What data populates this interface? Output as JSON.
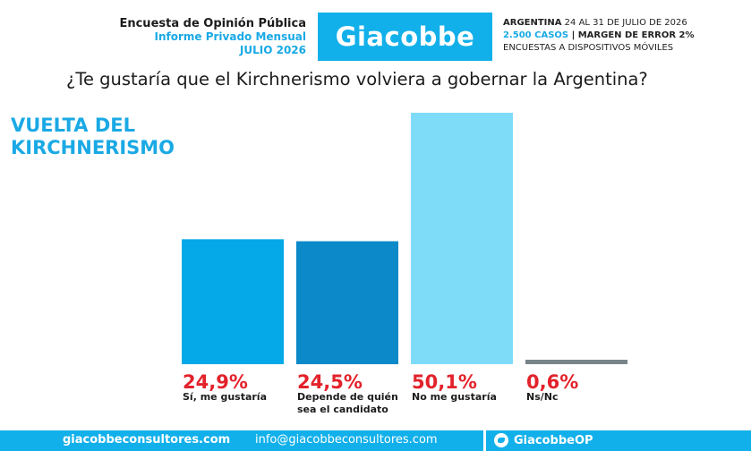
{
  "header": {
    "line1": "Encuesta de Opinión Pública",
    "line2": "Informe Privado Mensual",
    "line3": "JULIO 2026",
    "logo": "Giacobbe",
    "right_line1_bold": "ARGENTINA",
    "right_line1_rest": " 24 AL 31 DE JULIO DE 2026",
    "right_line2_blue": "2.500 CASOS",
    "right_line2_rest": " | MARGEN DE ERROR 2%",
    "right_line3": "ENCUESTAS A DISPOSITIVOS MÓVILES"
  },
  "question": "¿Te gustaría que el Kirchnerismo volviera a gobernar la Argentina?",
  "side_title": "VUELTA DEL KIRCHNERISMO",
  "chart_data": {
    "type": "bar",
    "title": "¿Te gustaría que el Kirchnerismo volviera a gobernar la Argentina?",
    "categories": [
      "Sí, me gustaría",
      "Depende de quién sea el candidato",
      "No me gustaría",
      "Ns/Nc"
    ],
    "category_lines": [
      [
        "Sí, me gustaría"
      ],
      [
        "Depende de quién",
        "sea el candidato"
      ],
      [
        "No me gustaría"
      ],
      [
        "Ns/Nc"
      ]
    ],
    "values": [
      24.9,
      24.5,
      50.1,
      0.6
    ],
    "value_labels": [
      "24,9%",
      "24,5%",
      "50,1%",
      "0,6%"
    ],
    "colors": [
      "#05a9e8",
      "#0b89c9",
      "#7fdcf8",
      "#78858b"
    ],
    "value_label_color": "#e3222b",
    "ylim": [
      0,
      50.1
    ],
    "grid": false,
    "legend": "none"
  },
  "footer": {
    "website": "giacobbeconsultores.com",
    "email": "info@giacobbeconsultores.com",
    "twitter": "GiacobbeOP",
    "color": "#12b0ea"
  }
}
